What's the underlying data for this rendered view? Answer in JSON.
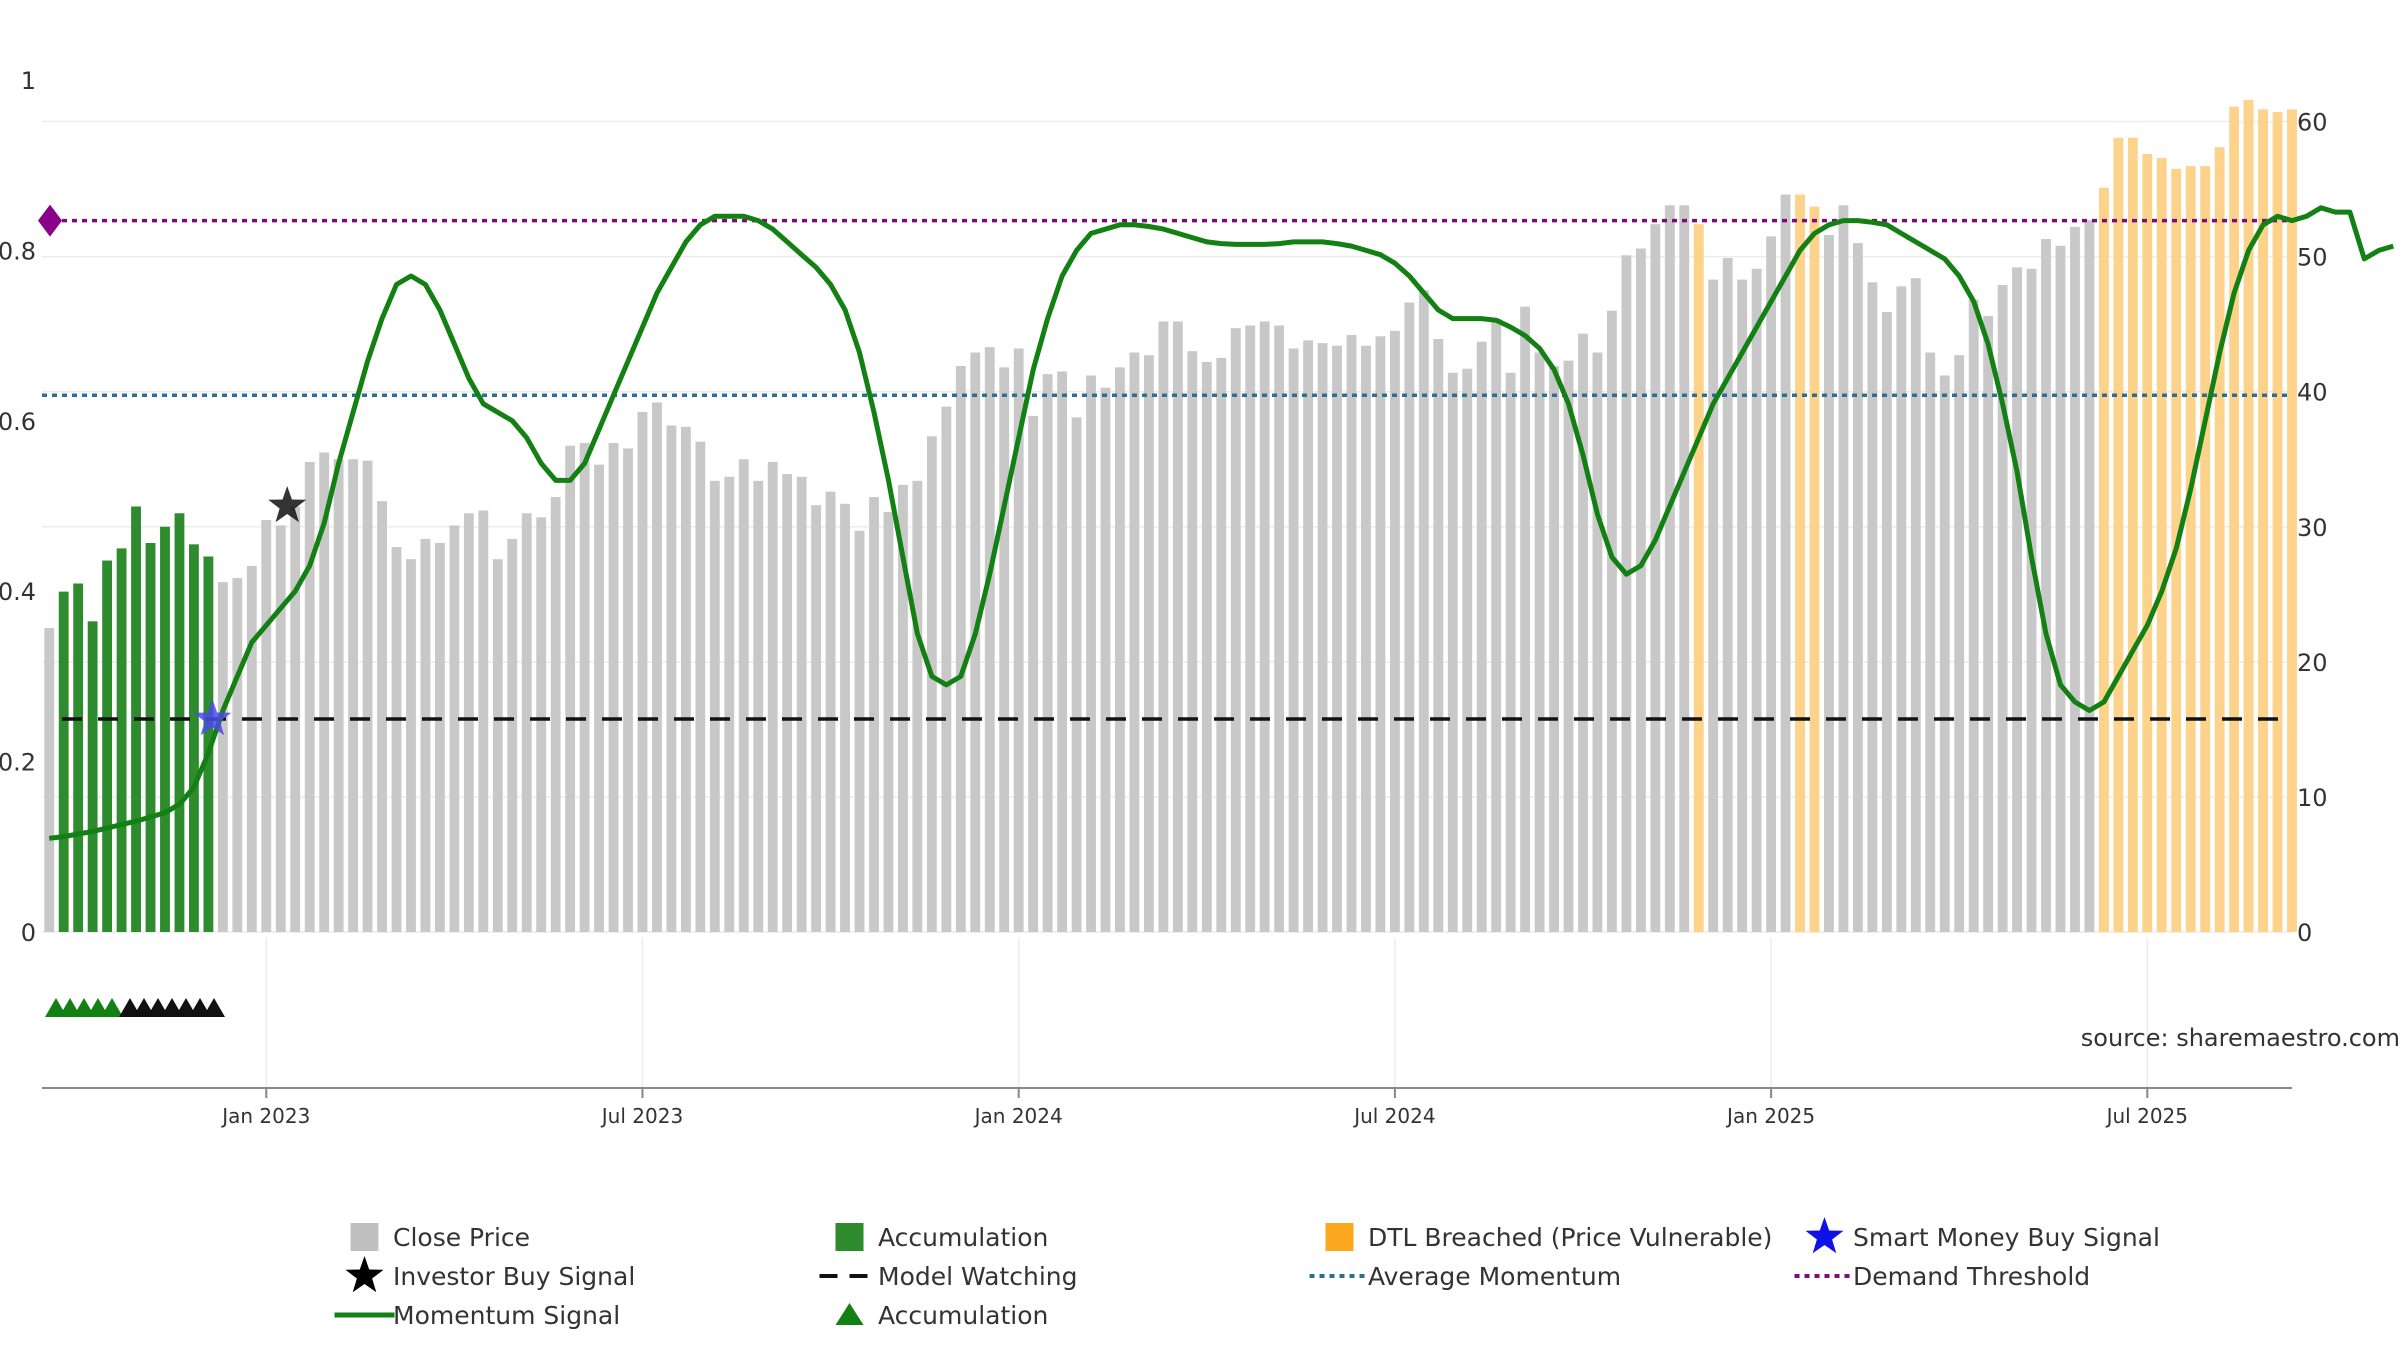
{
  "chart_data": {
    "type": "bar",
    "source_label": "source: sharemaestro.com",
    "left_axis": {
      "ticks": [
        0,
        0.2,
        0.4,
        0.6,
        0.8,
        1
      ],
      "labels": [
        "0",
        "0.2",
        "0.4",
        "0.6",
        "0.8",
        "1"
      ],
      "range": [
        0,
        1
      ]
    },
    "right_axis": {
      "ticks": [
        0,
        10,
        20,
        30,
        40,
        50,
        60
      ],
      "labels": [
        "0",
        "10",
        "20",
        "30",
        "40",
        "50",
        "60"
      ],
      "range": [
        0,
        65
      ]
    },
    "x_labels": [
      {
        "label": "Jan 2023",
        "index": 15
      },
      {
        "label": "Jul 2023",
        "index": 41
      },
      {
        "label": "Jan 2024",
        "index": 67
      },
      {
        "label": "Jul 2024",
        "index": 93
      },
      {
        "label": "Jan 2025",
        "index": 119
      },
      {
        "label": "Jul 2025",
        "index": 145
      }
    ],
    "series": [
      {
        "name": "Close Price",
        "color": "#c8c8c8",
        "values": [
          22.5,
          25.2,
          25.8,
          23,
          27.5,
          28.4,
          31.5,
          28.8,
          30,
          31,
          28.7,
          27.8,
          25.9,
          26.2,
          27.1,
          30.5,
          30.1,
          31.5,
          34.8,
          35.5,
          35,
          35,
          34.9,
          31.9,
          28.5,
          27.6,
          29.1,
          28.8,
          30.1,
          31,
          31.2,
          27.6,
          29.1,
          31,
          30.7,
          32.2,
          36,
          36.2,
          34.6,
          36.2,
          35.8,
          38.5,
          39.2,
          37.5,
          37.4,
          36.3,
          33.4,
          33.7,
          35,
          33.4,
          34.8,
          33.9,
          33.7,
          31.6,
          32.6,
          31.7,
          29.7,
          32.2,
          31.1,
          33.1,
          33.4,
          36.7,
          38.9,
          41.9,
          42.9,
          43.3,
          41.8,
          43.2,
          38.2,
          41.3,
          41.5,
          38.1,
          41.2,
          40.3,
          41.8,
          42.9,
          42.7,
          45.2,
          45.2,
          43,
          42.2,
          42.5,
          44.7,
          44.9,
          45.2,
          44.9,
          43.2,
          43.8,
          43.6,
          43.4,
          44.2,
          43.4,
          44.1,
          44.5,
          46.6,
          47.5,
          43.9,
          41.4,
          41.7,
          43.7,
          45.4,
          41.4,
          46.3,
          42.9,
          41.9,
          42.3,
          44.3,
          42.9,
          46,
          50.1,
          50.6,
          52.4,
          53.8,
          53.8,
          52.4,
          48.3,
          49.9,
          48.3,
          49.1,
          51.5,
          54.6,
          54.6,
          53.7,
          51.6,
          53.8,
          51,
          48.1,
          45.9,
          47.8,
          48.4,
          42.9,
          41.2,
          42.7,
          46.8,
          45.6,
          47.9,
          49.2,
          49.1,
          51.3,
          50.8,
          52.2,
          52.7,
          55.1,
          58.8,
          58.8,
          57.6,
          57.3,
          56.5,
          56.7,
          56.7,
          58.1,
          61.1,
          61.6,
          60.9,
          60.7,
          60.9
        ]
      },
      {
        "name": "Accumulation",
        "color": "#2e8b2e",
        "indices": [
          1,
          2,
          3,
          4,
          5,
          6,
          7,
          8,
          9,
          10,
          11
        ]
      },
      {
        "name": "DTL Breached (Price Vulnerable)",
        "color": "#fdd28a",
        "indices": [
          114,
          121,
          122,
          142,
          143,
          144,
          145,
          146,
          147,
          148,
          149,
          150,
          151,
          152,
          153,
          154,
          155
        ]
      },
      {
        "name": "Momentum Signal",
        "color": "#138013",
        "values": [
          0.11,
          0.112,
          0.115,
          0.118,
          0.122,
          0.126,
          0.13,
          0.135,
          0.14,
          0.15,
          0.17,
          0.21,
          0.26,
          0.3,
          0.34,
          0.36,
          0.38,
          0.4,
          0.43,
          0.48,
          0.55,
          0.61,
          0.67,
          0.72,
          0.76,
          0.77,
          0.76,
          0.73,
          0.69,
          0.65,
          0.62,
          0.61,
          0.6,
          0.58,
          0.55,
          0.53,
          0.53,
          0.55,
          0.59,
          0.63,
          0.67,
          0.71,
          0.75,
          0.78,
          0.81,
          0.83,
          0.84,
          0.84,
          0.84,
          0.835,
          0.825,
          0.81,
          0.795,
          0.78,
          0.76,
          0.73,
          0.68,
          0.61,
          0.53,
          0.44,
          0.35,
          0.3,
          0.29,
          0.3,
          0.35,
          0.42,
          0.5,
          0.58,
          0.66,
          0.72,
          0.77,
          0.8,
          0.82,
          0.825,
          0.83,
          0.83,
          0.828,
          0.825,
          0.82,
          0.815,
          0.81,
          0.808,
          0.807,
          0.807,
          0.807,
          0.808,
          0.81,
          0.81,
          0.81,
          0.808,
          0.805,
          0.8,
          0.795,
          0.785,
          0.77,
          0.75,
          0.73,
          0.72,
          0.72,
          0.72,
          0.718,
          0.71,
          0.7,
          0.685,
          0.66,
          0.62,
          0.56,
          0.49,
          0.44,
          0.42,
          0.43,
          0.46,
          0.5,
          0.54,
          0.58,
          0.62,
          0.65,
          0.68,
          0.71,
          0.74,
          0.77,
          0.8,
          0.82,
          0.83,
          0.835,
          0.835,
          0.833,
          0.83,
          0.82,
          0.81,
          0.8,
          0.79,
          0.77,
          0.74,
          0.69,
          0.62,
          0.54,
          0.44,
          0.35,
          0.29,
          0.27,
          0.26,
          0.27,
          0.3,
          0.33,
          0.36,
          0.4,
          0.45,
          0.52,
          0.6,
          0.68,
          0.75,
          0.8,
          0.83,
          0.84,
          0.835,
          0.84,
          0.85,
          0.845,
          0.845,
          0.79,
          0.8,
          0.805
        ]
      },
      {
        "name": "Model Watching",
        "value": 0.25
      },
      {
        "name": "Average Momentum",
        "value": 0.63
      },
      {
        "name": "Demand Threshold",
        "value": 0.835
      }
    ],
    "investor_buy_signal": {
      "index": 17,
      "y": 0.5
    },
    "smart_money_buy_signal": {
      "index": 11,
      "y": 0.25
    },
    "accumulation_markers": {
      "green_indices": [
        0,
        1,
        2,
        3,
        4
      ],
      "black_indices": [
        5,
        6,
        7,
        8,
        9,
        10,
        11
      ]
    },
    "legend": [
      {
        "label": "Close Price"
      },
      {
        "label": "Accumulation"
      },
      {
        "label": "DTL Breached (Price Vulnerable)"
      },
      {
        "label": "Smart Money Buy Signal"
      },
      {
        "label": "Investor Buy Signal"
      },
      {
        "label": "Model Watching"
      },
      {
        "label": "Average Momentum"
      },
      {
        "label": "Demand Threshold"
      },
      {
        "label": "Momentum Signal"
      },
      {
        "label": "Accumulation"
      }
    ]
  }
}
